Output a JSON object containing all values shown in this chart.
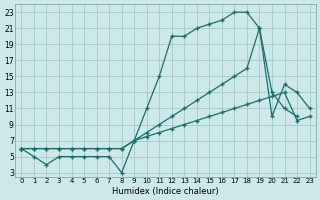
{
  "background_color": "#cce8e8",
  "grid_color": "#aacccc",
  "line_color": "#1a6e6e",
  "xlabel": "Humidex (Indice chaleur)",
  "xlim": [
    -0.5,
    23.5
  ],
  "ylim": [
    2.5,
    24.0
  ],
  "xticks": [
    0,
    1,
    2,
    3,
    4,
    5,
    6,
    7,
    8,
    9,
    10,
    11,
    12,
    13,
    14,
    15,
    16,
    17,
    18,
    19,
    20,
    21,
    22,
    23
  ],
  "yticks": [
    3,
    5,
    7,
    9,
    11,
    13,
    15,
    17,
    19,
    21,
    23
  ],
  "series1_x": [
    0,
    1,
    2,
    3,
    4,
    5,
    6,
    7,
    8,
    9,
    10,
    11,
    12,
    13,
    14,
    15,
    16,
    17,
    18,
    19,
    20,
    21,
    22
  ],
  "series1_y": [
    6,
    5,
    4,
    5,
    5,
    5,
    5,
    5,
    3,
    7,
    11,
    15,
    20,
    20,
    21,
    21.5,
    22,
    23,
    23,
    21,
    13,
    11,
    10
  ],
  "series2_x": [
    0,
    1,
    2,
    3,
    4,
    5,
    6,
    7,
    8,
    9,
    10,
    11,
    12,
    13,
    14,
    15,
    16,
    17,
    18,
    19,
    20,
    21,
    22,
    23
  ],
  "series2_y": [
    6,
    6,
    6,
    6,
    6,
    6,
    6,
    6,
    6,
    7,
    8,
    9,
    10,
    11,
    12,
    13,
    14,
    15,
    16,
    21,
    10,
    14,
    13,
    11
  ],
  "series3_x": [
    0,
    1,
    2,
    3,
    4,
    5,
    6,
    7,
    8,
    9,
    10,
    11,
    12,
    13,
    14,
    15,
    16,
    17,
    18,
    19,
    20,
    21,
    22,
    23
  ],
  "series3_y": [
    6,
    6,
    6,
    6,
    6,
    6,
    6,
    6,
    6,
    7,
    7.5,
    8,
    8.5,
    9,
    9.5,
    10,
    10.5,
    11,
    11.5,
    12,
    12.5,
    13,
    9.5,
    10
  ]
}
